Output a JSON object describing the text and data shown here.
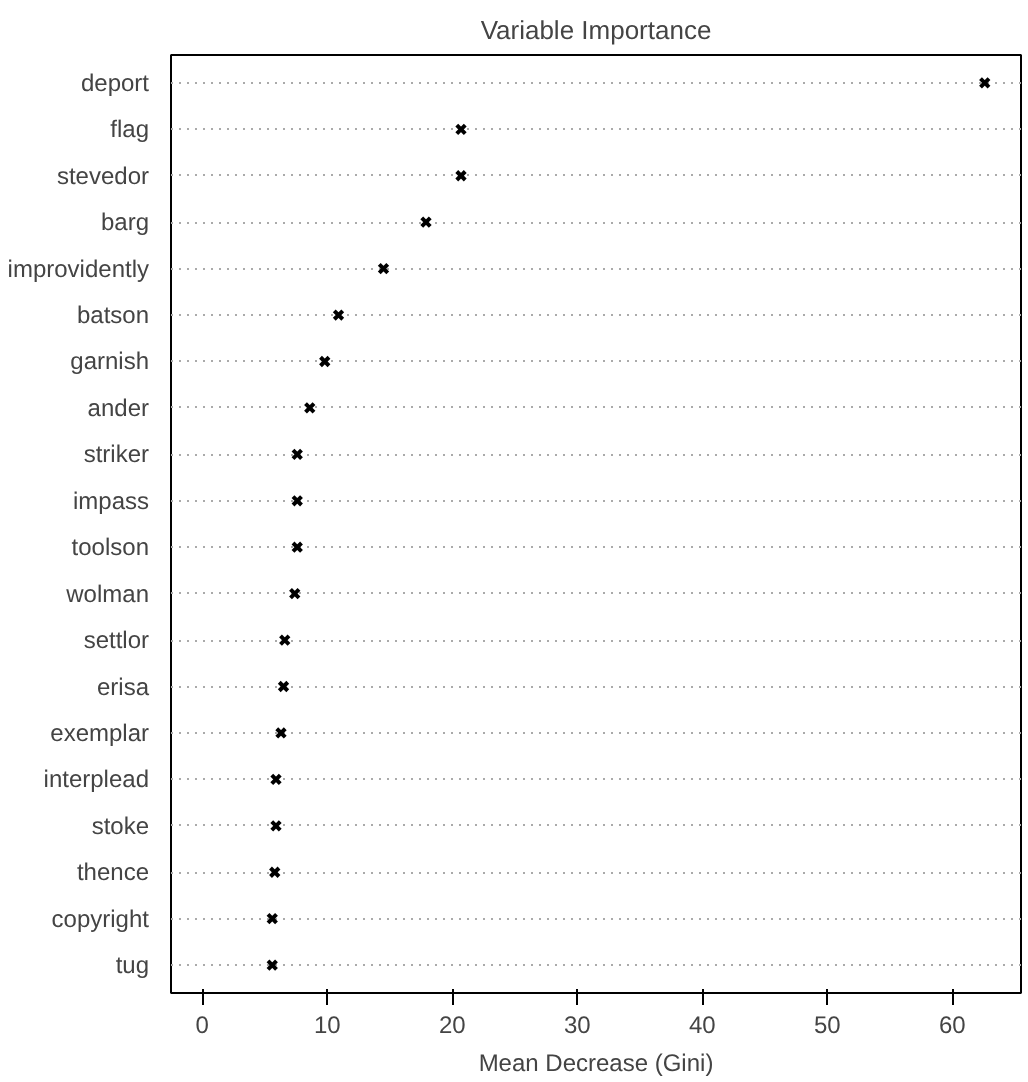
{
  "chart_data": {
    "type": "scatter",
    "title": "Variable Importance",
    "xlabel": "Mean Decrease (Gini)",
    "categories": [
      "deport",
      "flag",
      "stevedor",
      "barg",
      "improvidently",
      "batson",
      "garnish",
      "ander",
      "striker",
      "impass",
      "toolson",
      "wolman",
      "settlor",
      "erisa",
      "exemplar",
      "interplead",
      "stoke",
      "thence",
      "copyright",
      "tug"
    ],
    "orientation": "horizontal",
    "values": [
      62.6,
      20.7,
      20.7,
      17.9,
      14.5,
      10.9,
      9.8,
      8.6,
      7.6,
      7.6,
      7.6,
      7.4,
      6.6,
      6.5,
      6.3,
      5.9,
      5.9,
      5.8,
      5.6,
      5.6
    ],
    "color": "#000000",
    "marker": "cross",
    "grid": "y",
    "xlim": [
      -2.5,
      65.5
    ],
    "xticks": [
      0,
      10,
      20,
      30,
      40,
      50,
      60
    ]
  }
}
